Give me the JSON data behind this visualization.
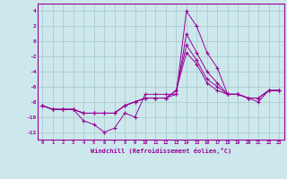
{
  "xlabel": "Windchill (Refroidissement éolien,°C)",
  "background_color": "#cce8ec",
  "grid_color": "#aaccd0",
  "line_color": "#990099",
  "xlim": [
    -0.5,
    23.5
  ],
  "ylim": [
    -13,
    5
  ],
  "yticks": [
    -12,
    -10,
    -8,
    -6,
    -4,
    -2,
    0,
    2,
    4
  ],
  "xticks": [
    0,
    1,
    2,
    3,
    4,
    5,
    6,
    7,
    8,
    9,
    10,
    11,
    12,
    13,
    14,
    15,
    16,
    17,
    18,
    19,
    20,
    21,
    22,
    23
  ],
  "series": [
    [
      -8.5,
      -9.0,
      -9.0,
      -9.0,
      -10.5,
      -11.0,
      -12.0,
      -11.5,
      -9.5,
      -10.0,
      -7.0,
      -7.0,
      -7.0,
      -7.0,
      4.0,
      2.0,
      -1.5,
      -3.5,
      -7.0,
      -7.0,
      -7.5,
      -8.0,
      -6.5,
      -6.5
    ],
    [
      -8.5,
      -9.0,
      -9.0,
      -9.0,
      -9.5,
      -9.5,
      -9.5,
      -9.5,
      -8.5,
      -8.0,
      -7.5,
      -7.5,
      -7.5,
      -7.0,
      1.0,
      -1.5,
      -4.0,
      -5.5,
      -7.0,
      -7.0,
      -7.5,
      -7.5,
      -6.5,
      -6.5
    ],
    [
      -8.5,
      -9.0,
      -9.0,
      -9.0,
      -9.5,
      -9.5,
      -9.5,
      -9.5,
      -8.5,
      -8.0,
      -7.5,
      -7.5,
      -7.5,
      -6.5,
      -0.5,
      -2.5,
      -5.0,
      -6.0,
      -7.0,
      -7.0,
      -7.5,
      -7.5,
      -6.5,
      -6.5
    ],
    [
      -8.5,
      -9.0,
      -9.0,
      -9.0,
      -9.5,
      -9.5,
      -9.5,
      -9.5,
      -8.5,
      -8.0,
      -7.5,
      -7.5,
      -7.5,
      -6.5,
      -1.5,
      -3.0,
      -5.5,
      -6.5,
      -7.0,
      -7.0,
      -7.5,
      -7.5,
      -6.5,
      -6.5
    ]
  ]
}
